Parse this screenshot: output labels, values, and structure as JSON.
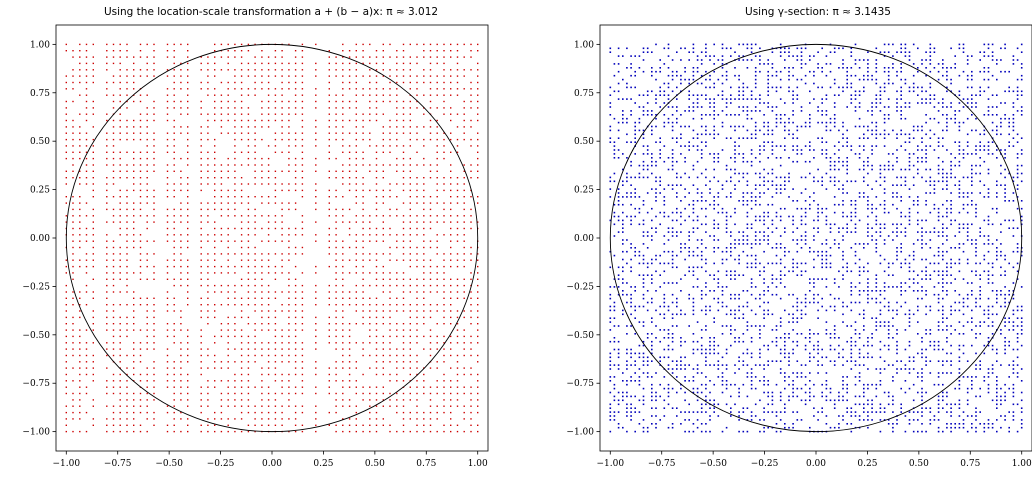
{
  "chart_data": [
    {
      "type": "scatter",
      "title": "Using the location-scale transformation a + (b − a)x: π ≈ 3.012",
      "xlabel": "",
      "ylabel": "",
      "xlim": [
        -1.05,
        1.05
      ],
      "ylim": [
        -1.1,
        1.1
      ],
      "x_ticks": [
        "−1.00",
        "−0.75",
        "−0.50",
        "−0.25",
        "0.00",
        "0.25",
        "0.50",
        "0.75",
        "1.00"
      ],
      "y_ticks": [
        "1.00",
        "0.75",
        "0.50",
        "0.25",
        "0.00",
        "−0.25",
        "−0.50",
        "−0.75",
        "−1.00"
      ],
      "x_tick_values": [
        -1,
        -0.75,
        -0.5,
        -0.25,
        0,
        0.25,
        0.5,
        0.75,
        1
      ],
      "y_tick_values": [
        1,
        0.75,
        0.5,
        0.25,
        0,
        -0.25,
        -0.5,
        -0.75,
        -1
      ],
      "circle": {
        "center": [
          0,
          0
        ],
        "radius": 1
      },
      "points": {
        "color": "#cc0000",
        "pattern": "grid",
        "x_range": [
          -1,
          1
        ],
        "y_range": [
          -1,
          1
        ],
        "count": 3000
      },
      "grid": false,
      "legend": "none"
    },
    {
      "type": "scatter",
      "title": "Using γ-section: π ≈ 3.1435",
      "xlabel": "",
      "ylabel": "",
      "xlim": [
        -1.05,
        1.05
      ],
      "ylim": [
        -1.1,
        1.1
      ],
      "x_ticks": [
        "−1.00",
        "−0.75",
        "−0.50",
        "−0.25",
        "0.00",
        "0.25",
        "0.50",
        "0.75",
        "1.00"
      ],
      "y_ticks": [
        "1.00",
        "0.75",
        "0.50",
        "0.25",
        "0.00",
        "−0.25",
        "−0.50",
        "−0.75",
        "−1.00"
      ],
      "x_tick_values": [
        -1,
        -0.75,
        -0.5,
        -0.25,
        0,
        0.25,
        0.5,
        0.75,
        1
      ],
      "y_tick_values": [
        1,
        0.75,
        0.5,
        0.25,
        0,
        -0.25,
        -0.5,
        -0.75,
        -1
      ],
      "circle": {
        "center": [
          0,
          0
        ],
        "radius": 1
      },
      "points": {
        "color": "#0000bb",
        "pattern": "random",
        "x_range": [
          -1,
          1
        ],
        "y_range": [
          -1,
          1
        ],
        "count": 4000
      },
      "grid": false,
      "legend": "none"
    }
  ]
}
